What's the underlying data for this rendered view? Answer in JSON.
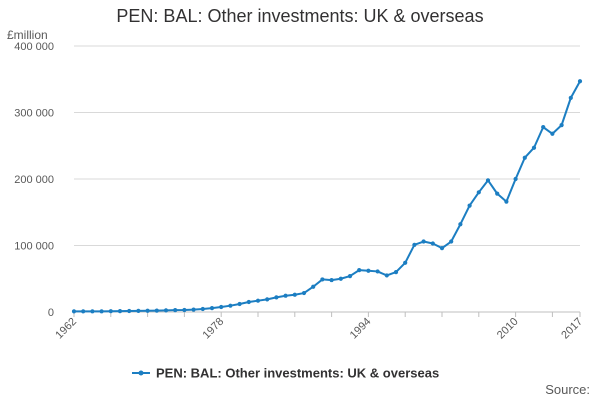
{
  "chart_data": {
    "type": "line",
    "title": "PEN: BAL: Other investments: UK & overseas",
    "unit_label": "£million",
    "source_label": "Source:",
    "xlabel": "",
    "ylabel": "",
    "xlim": [
      1962,
      2017
    ],
    "ylim": [
      0,
      400000
    ],
    "x_ticks": [
      1962,
      1978,
      1994,
      2010,
      2017
    ],
    "y_ticks": [
      {
        "value": 0,
        "label": "0"
      },
      {
        "value": 100000,
        "label": "100 000"
      },
      {
        "value": 200000,
        "label": "200 000"
      },
      {
        "value": 300000,
        "label": "300 000"
      },
      {
        "value": 400000,
        "label": "400 000"
      }
    ],
    "grid": true,
    "legend_position": "bottom",
    "series": [
      {
        "name": "PEN: BAL: Other investments: UK & overseas",
        "color": "#1c7ec2",
        "x": [
          1962,
          1963,
          1964,
          1965,
          1966,
          1967,
          1968,
          1969,
          1970,
          1971,
          1972,
          1973,
          1974,
          1975,
          1976,
          1977,
          1978,
          1979,
          1980,
          1981,
          1982,
          1983,
          1984,
          1985,
          1986,
          1987,
          1988,
          1989,
          1990,
          1991,
          1992,
          1993,
          1994,
          1995,
          1996,
          1997,
          1998,
          1999,
          2000,
          2001,
          2002,
          2003,
          2004,
          2005,
          2006,
          2007,
          2008,
          2009,
          2010,
          2011,
          2012,
          2013,
          2014,
          2015,
          2016,
          2017
        ],
        "values": [
          1000,
          1000,
          1000,
          1000,
          1200,
          1300,
          1500,
          1700,
          1900,
          2100,
          2500,
          2800,
          3000,
          3600,
          4500,
          5800,
          7500,
          9500,
          12000,
          15000,
          17000,
          19000,
          22000,
          24500,
          26000,
          28500,
          38000,
          49000,
          48000,
          50000,
          54000,
          63000,
          62000,
          61000,
          55000,
          60000,
          74000,
          101000,
          106000,
          103000,
          96000,
          106000,
          132000,
          160000,
          180000,
          198000,
          178000,
          166000,
          200000,
          232000,
          247000,
          278000,
          268000,
          281000,
          322000,
          347000
        ]
      }
    ]
  }
}
